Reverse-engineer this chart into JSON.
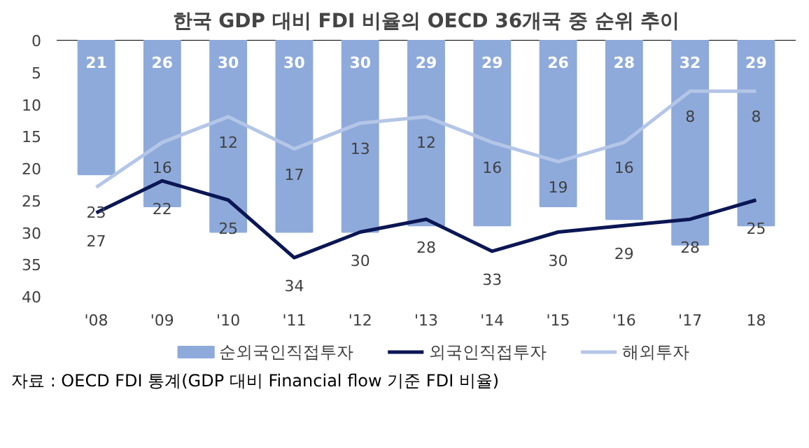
{
  "chart_data": {
    "type": "bar",
    "title": "한국 GDP 대비 FDI 비율의 OECD 36개국 중 순위 추이",
    "categories": [
      "'08",
      "'09",
      "'10",
      "'11",
      "'12",
      "'13",
      "'14",
      "'15",
      "'16",
      "'17",
      "18"
    ],
    "series": [
      {
        "name": "순외국인직접투자",
        "color": "#8eaadb",
        "values": [
          21,
          26,
          30,
          30,
          30,
          29,
          29,
          26,
          28,
          32,
          29
        ]
      },
      {
        "name": "외국인직접투자",
        "type": "line",
        "color": "#0b1654",
        "values": [
          27,
          22,
          25,
          34,
          30,
          28,
          33,
          30,
          29,
          28,
          25
        ]
      },
      {
        "name": "해외투자",
        "type": "line",
        "color": "#b4c6e7",
        "values": [
          23,
          16,
          12,
          17,
          13,
          12,
          16,
          19,
          16,
          8,
          8
        ]
      }
    ],
    "ylim": [
      40,
      0
    ],
    "yticks": [
      0,
      5,
      10,
      15,
      20,
      25,
      30,
      35,
      40
    ],
    "data_labels": true,
    "legend": "bottom",
    "grid": false,
    "annotations": [
      "자료 : OECD FDI 통계(GDP 대비 Financial flow 기준 FDI 비율)"
    ]
  }
}
